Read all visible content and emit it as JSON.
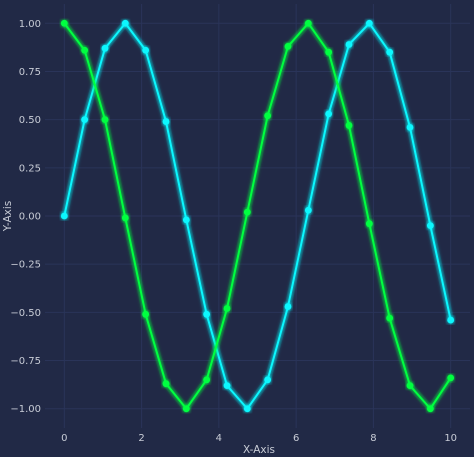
{
  "chart_data": {
    "type": "line",
    "title": "",
    "xlabel": "X-Axis",
    "ylabel": "Y-Axis",
    "xlim": [
      -0.5,
      10.5
    ],
    "ylim": [
      -1.1,
      1.1
    ],
    "x_ticks": [
      0,
      2,
      4,
      6,
      8,
      10
    ],
    "x_tick_labels": [
      "0",
      "2",
      "4",
      "6",
      "8",
      "10"
    ],
    "y_ticks": [
      1.0,
      0.75,
      0.5,
      0.25,
      0.0,
      -0.25,
      -0.5,
      -0.75,
      -1.0
    ],
    "y_tick_labels": [
      "1.00",
      "0.75",
      "0.50",
      "0.25",
      "0.00",
      "−0.25",
      "−0.50",
      "−0.75",
      "−1.00"
    ],
    "grid": true,
    "legend": "none",
    "series": [
      {
        "color": "#08F7FE",
        "x": [
          0,
          0.526,
          1.053,
          1.579,
          2.105,
          2.632,
          3.158,
          3.684,
          4.211,
          4.737,
          5.263,
          5.789,
          6.316,
          6.842,
          7.368,
          7.895,
          8.421,
          8.947,
          9.474,
          10
        ],
        "y": [
          0.0,
          0.5,
          0.87,
          1.0,
          0.86,
          0.49,
          -0.02,
          -0.51,
          -0.88,
          -1.0,
          -0.85,
          -0.47,
          0.03,
          0.53,
          0.89,
          1.0,
          0.85,
          0.46,
          -0.05,
          -0.54
        ]
      },
      {
        "color": "#00FF41",
        "x": [
          0,
          0.526,
          1.053,
          1.579,
          2.105,
          2.632,
          3.158,
          3.684,
          4.211,
          4.737,
          5.263,
          5.789,
          6.316,
          6.842,
          7.368,
          7.895,
          8.421,
          8.947,
          9.474,
          10
        ],
        "y": [
          1.0,
          0.86,
          0.5,
          -0.01,
          -0.51,
          -0.87,
          -1.0,
          -0.85,
          -0.48,
          0.02,
          0.52,
          0.88,
          1.0,
          0.85,
          0.47,
          -0.04,
          -0.53,
          -0.88,
          -1.0,
          -0.84
        ]
      }
    ]
  }
}
